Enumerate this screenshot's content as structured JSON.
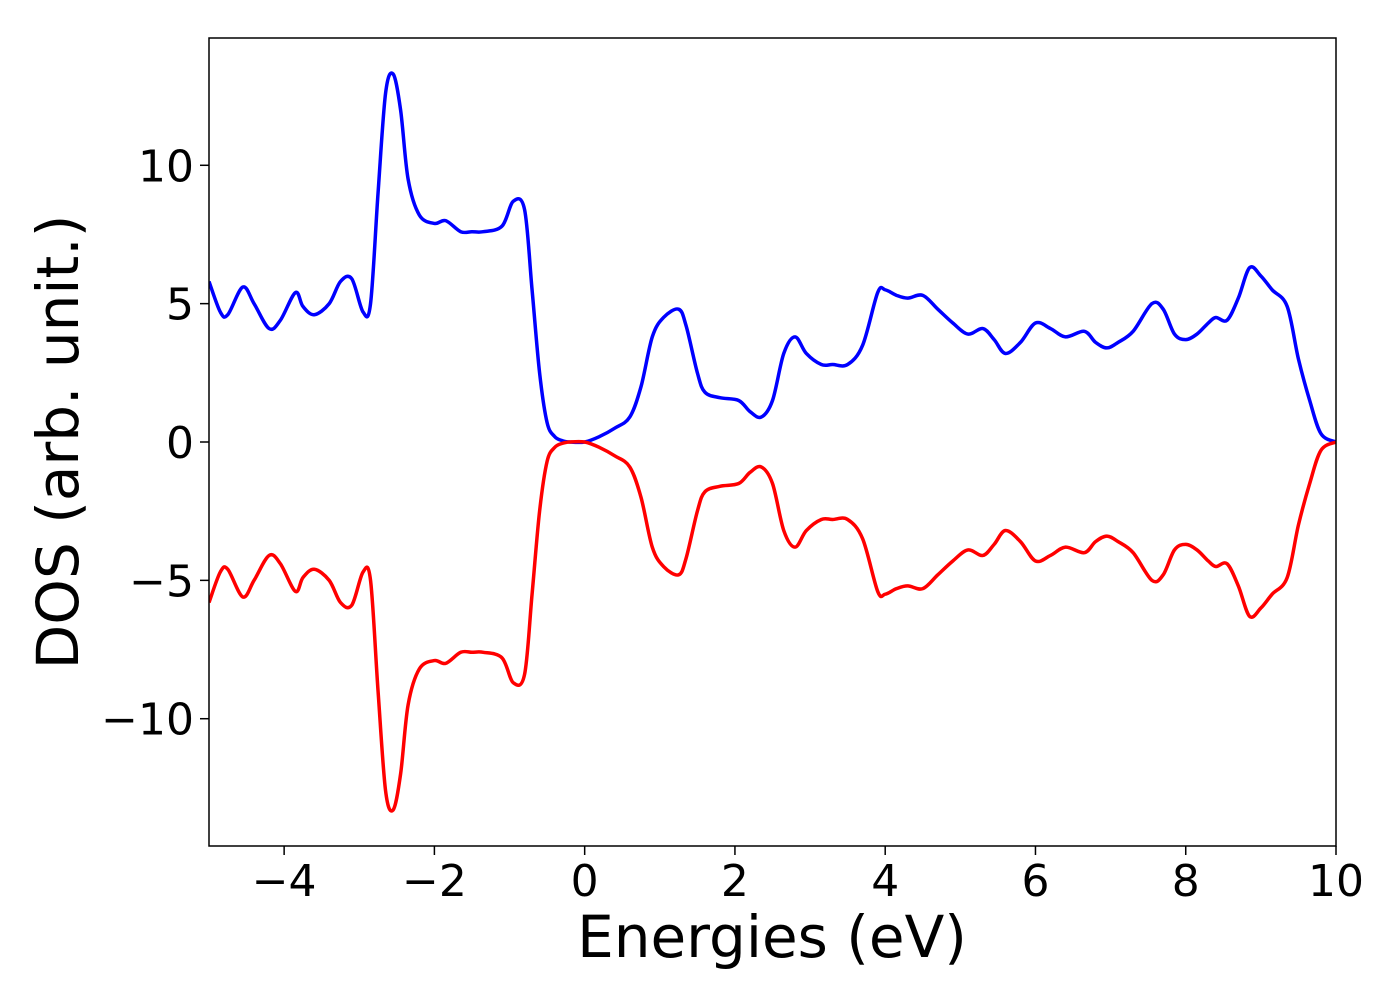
{
  "chart_data": {
    "type": "line",
    "xlabel": "Energies (eV)",
    "ylabel": "DOS (arb. unit.)",
    "xlim": [
      -5,
      10
    ],
    "ylim": [
      -14.6,
      14.6
    ],
    "x_ticks": [
      -4,
      -2,
      0,
      2,
      4,
      6,
      8,
      10
    ],
    "y_ticks": [
      -10,
      -5,
      0,
      5,
      10
    ],
    "grid": false,
    "colors": {
      "spin_up": "#0000ff",
      "spin_down": "#ff0000"
    },
    "series": [
      {
        "color": "#0000ff",
        "x": [
          -5.0,
          -4.85,
          -4.75,
          -4.55,
          -4.4,
          -4.2,
          -4.05,
          -3.85,
          -3.75,
          -3.6,
          -3.4,
          -3.25,
          -3.1,
          -2.95,
          -2.85,
          -2.75,
          -2.65,
          -2.55,
          -2.45,
          -2.35,
          -2.2,
          -2.0,
          -1.85,
          -1.65,
          -1.5,
          -1.35,
          -1.1,
          -0.95,
          -0.8,
          -0.7,
          -0.6,
          -0.5,
          -0.4,
          -0.3,
          -0.2,
          0.0,
          0.2,
          0.4,
          0.6,
          0.75,
          0.9,
          1.05,
          1.25,
          1.35,
          1.5,
          1.6,
          1.8,
          2.05,
          2.2,
          2.35,
          2.5,
          2.65,
          2.8,
          2.95,
          3.15,
          3.3,
          3.5,
          3.7,
          3.9,
          4.0,
          4.15,
          4.3,
          4.5,
          4.7,
          4.9,
          5.1,
          5.3,
          5.45,
          5.6,
          5.8,
          6.0,
          6.2,
          6.4,
          6.65,
          6.8,
          6.95,
          7.1,
          7.3,
          7.55,
          7.7,
          7.85,
          8.0,
          8.15,
          8.3,
          8.4,
          8.55,
          8.7,
          8.85,
          9.0,
          9.15,
          9.35,
          9.5,
          9.65,
          9.8,
          10.0
        ],
        "y": [
          5.8,
          4.7,
          4.6,
          5.6,
          5.0,
          4.1,
          4.4,
          5.4,
          4.9,
          4.6,
          5.0,
          5.8,
          5.9,
          4.7,
          5.0,
          9.0,
          12.6,
          13.3,
          12.0,
          9.5,
          8.2,
          7.9,
          8.0,
          7.6,
          7.6,
          7.6,
          7.8,
          8.7,
          8.4,
          5.5,
          2.5,
          0.7,
          0.2,
          0.05,
          0.0,
          0.0,
          0.2,
          0.5,
          0.9,
          2.0,
          3.8,
          4.5,
          4.8,
          4.2,
          2.5,
          1.8,
          1.6,
          1.5,
          1.1,
          0.9,
          1.5,
          3.2,
          3.8,
          3.2,
          2.8,
          2.8,
          2.8,
          3.5,
          5.4,
          5.5,
          5.3,
          5.2,
          5.3,
          4.8,
          4.3,
          3.9,
          4.1,
          3.7,
          3.2,
          3.6,
          4.3,
          4.1,
          3.8,
          4.0,
          3.6,
          3.4,
          3.6,
          4.0,
          5.0,
          4.8,
          3.9,
          3.7,
          3.9,
          4.3,
          4.5,
          4.4,
          5.2,
          6.3,
          6.0,
          5.5,
          4.9,
          3.0,
          1.5,
          0.3,
          0.0
        ]
      },
      {
        "color": "#ff0000",
        "x": [
          -5.0,
          -4.85,
          -4.75,
          -4.55,
          -4.4,
          -4.2,
          -4.05,
          -3.85,
          -3.75,
          -3.6,
          -3.4,
          -3.25,
          -3.1,
          -2.95,
          -2.85,
          -2.75,
          -2.65,
          -2.55,
          -2.45,
          -2.35,
          -2.2,
          -2.0,
          -1.85,
          -1.65,
          -1.5,
          -1.35,
          -1.1,
          -0.95,
          -0.8,
          -0.7,
          -0.6,
          -0.5,
          -0.4,
          -0.3,
          -0.2,
          0.0,
          0.2,
          0.4,
          0.6,
          0.75,
          0.9,
          1.05,
          1.25,
          1.35,
          1.5,
          1.6,
          1.8,
          2.05,
          2.2,
          2.35,
          2.5,
          2.65,
          2.8,
          2.95,
          3.15,
          3.3,
          3.5,
          3.7,
          3.9,
          4.0,
          4.15,
          4.3,
          4.5,
          4.7,
          4.9,
          5.1,
          5.3,
          5.45,
          5.6,
          5.8,
          6.0,
          6.2,
          6.4,
          6.65,
          6.8,
          6.95,
          7.1,
          7.3,
          7.55,
          7.7,
          7.85,
          8.0,
          8.15,
          8.3,
          8.4,
          8.55,
          8.7,
          8.85,
          9.0,
          9.15,
          9.35,
          9.5,
          9.65,
          9.8,
          10.0
        ],
        "y": [
          -5.8,
          -4.7,
          -4.6,
          -5.6,
          -5.0,
          -4.1,
          -4.4,
          -5.4,
          -4.9,
          -4.6,
          -5.0,
          -5.8,
          -5.9,
          -4.7,
          -5.0,
          -9.0,
          -12.6,
          -13.3,
          -12.0,
          -9.5,
          -8.2,
          -7.9,
          -8.0,
          -7.6,
          -7.6,
          -7.6,
          -7.8,
          -8.7,
          -8.4,
          -5.5,
          -2.5,
          -0.7,
          -0.2,
          -0.05,
          0.0,
          0.0,
          -0.2,
          -0.5,
          -0.9,
          -2.0,
          -3.8,
          -4.5,
          -4.8,
          -4.2,
          -2.5,
          -1.8,
          -1.6,
          -1.5,
          -1.1,
          -0.9,
          -1.5,
          -3.2,
          -3.8,
          -3.2,
          -2.8,
          -2.8,
          -2.8,
          -3.5,
          -5.4,
          -5.5,
          -5.3,
          -5.2,
          -5.3,
          -4.8,
          -4.3,
          -3.9,
          -4.1,
          -3.7,
          -3.2,
          -3.6,
          -4.3,
          -4.1,
          -3.8,
          -4.0,
          -3.6,
          -3.4,
          -3.6,
          -4.0,
          -5.0,
          -4.8,
          -3.9,
          -3.7,
          -3.9,
          -4.3,
          -4.5,
          -4.4,
          -5.2,
          -6.3,
          -6.0,
          -5.5,
          -4.9,
          -3.0,
          -1.5,
          -0.3,
          0.0
        ]
      }
    ]
  }
}
